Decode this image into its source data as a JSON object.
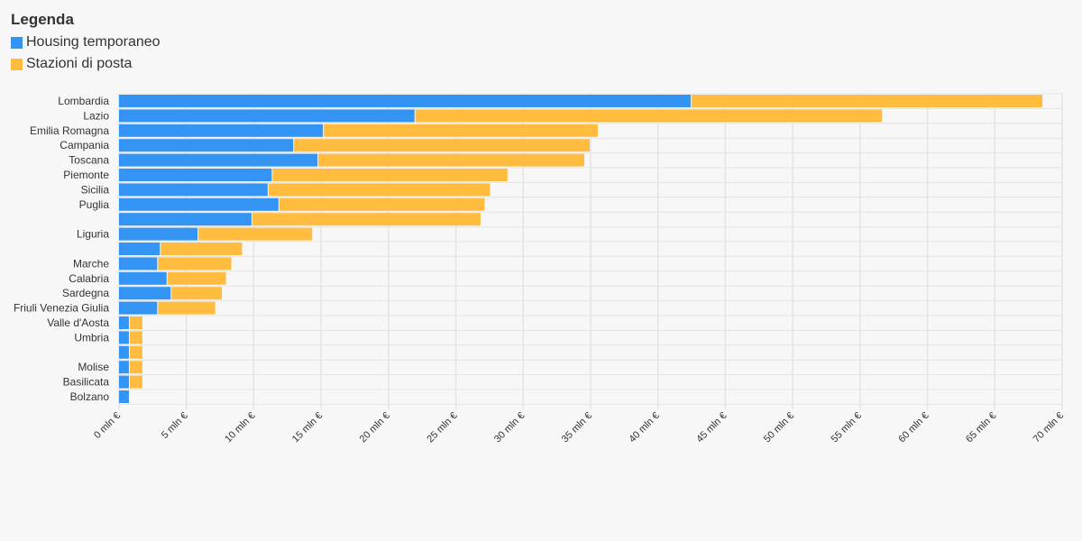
{
  "legend": {
    "title": "Legenda",
    "items": [
      {
        "label": "Housing temporaneo",
        "color": "#3394f3"
      },
      {
        "label": "Stazioni di posta",
        "color": "#ffbc3f"
      }
    ]
  },
  "chart_data": {
    "type": "bar",
    "orientation": "horizontal",
    "stacked": true,
    "title": "",
    "xlabel": "",
    "ylabel": "",
    "xlim": [
      0,
      70
    ],
    "tick_suffix": " mln €",
    "ticks": [
      0,
      5,
      10,
      15,
      20,
      25,
      30,
      35,
      40,
      45,
      50,
      55,
      60,
      65,
      70
    ],
    "grid": true,
    "legend_position": "top-left",
    "categories": [
      "Lombardia",
      "Lazio",
      "Emilia Romagna",
      "Campania",
      "Toscana",
      "Piemonte",
      "Sicilia",
      "Puglia",
      "",
      "Liguria",
      "",
      "Marche",
      "Calabria",
      "Sardegna",
      "Friuli Venezia Giulia",
      "Valle d'Aosta",
      "Umbria",
      "",
      "Molise",
      "Basilicata",
      "Bolzano"
    ],
    "series": [
      {
        "name": "Housing temporaneo",
        "color": "#3394f3",
        "values": [
          42.5,
          22.0,
          15.2,
          13.0,
          14.8,
          11.4,
          11.1,
          11.9,
          9.9,
          5.9,
          3.1,
          2.9,
          3.6,
          3.9,
          2.9,
          0.8,
          0.8,
          0.8,
          0.8,
          0.8,
          0.8
        ]
      },
      {
        "name": "Stazioni di posta",
        "color": "#ffbc3f",
        "values": [
          26.1,
          34.7,
          20.4,
          22.0,
          19.8,
          17.5,
          16.5,
          15.3,
          17.0,
          8.5,
          6.1,
          5.5,
          4.4,
          3.8,
          4.3,
          1.0,
          1.0,
          1.0,
          1.0,
          1.0,
          0.0
        ]
      }
    ]
  }
}
